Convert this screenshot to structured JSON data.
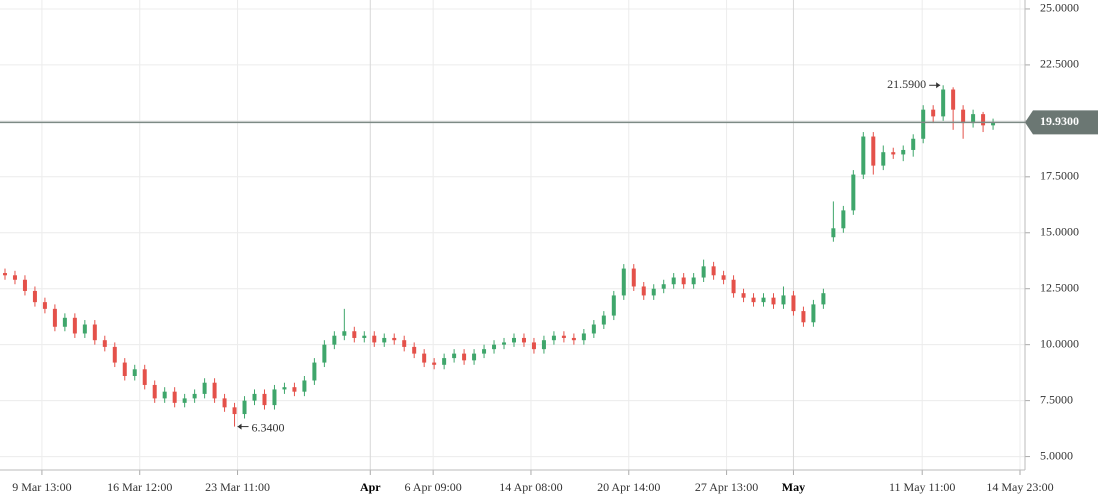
{
  "chart_data": {
    "type": "candlestick",
    "up_color": "#3fa66b",
    "down_color": "#e4514a",
    "open": [
      13.2,
      13.1,
      12.9,
      12.4,
      11.9,
      11.6,
      10.8,
      11.2,
      10.5,
      10.9,
      10.2,
      9.9,
      9.2,
      8.6,
      8.9,
      8.2,
      7.6,
      7.9,
      7.4,
      7.6,
      7.8,
      8.3,
      7.6,
      7.2,
      6.9,
      7.5,
      7.8,
      7.3,
      8.0,
      8.1,
      7.9,
      8.4,
      9.2,
      10.0,
      10.4,
      10.6,
      10.3,
      10.4,
      10.1,
      10.3,
      10.2,
      9.9,
      9.6,
      9.2,
      9.1,
      9.4,
      9.6,
      9.3,
      9.6,
      9.8,
      10.0,
      10.1,
      10.3,
      10.1,
      9.8,
      10.2,
      10.4,
      10.3,
      10.2,
      10.5,
      10.9,
      11.3,
      12.2,
      13.4,
      12.6,
      12.2,
      12.5,
      12.7,
      13.0,
      12.7,
      13.0,
      13.5,
      13.1,
      12.9,
      12.3,
      12.1,
      11.9,
      12.1,
      11.8,
      12.2,
      11.5,
      11.0,
      11.8,
      14.8,
      15.2,
      16.0,
      17.6,
      19.3,
      18.0,
      18.6,
      18.5,
      18.7,
      19.2,
      20.5,
      20.2,
      21.4,
      20.5,
      19.9,
      20.3,
      19.8
    ],
    "high": [
      13.4,
      13.3,
      13.1,
      12.6,
      12.1,
      11.8,
      11.4,
      11.4,
      11.1,
      11.1,
      10.4,
      10.1,
      9.4,
      9.1,
      9.1,
      8.4,
      8.1,
      8.1,
      7.8,
      8.0,
      8.5,
      8.5,
      7.8,
      7.4,
      7.7,
      8.0,
      8.0,
      8.2,
      8.3,
      8.3,
      8.6,
      9.4,
      10.2,
      10.6,
      11.6,
      10.8,
      10.6,
      10.6,
      10.5,
      10.5,
      10.4,
      10.1,
      9.8,
      9.4,
      9.6,
      9.8,
      9.8,
      9.8,
      10.0,
      10.2,
      10.3,
      10.5,
      10.5,
      10.3,
      10.4,
      10.6,
      10.6,
      10.5,
      10.7,
      11.1,
      11.5,
      12.4,
      13.6,
      13.6,
      12.8,
      12.7,
      12.9,
      13.2,
      13.2,
      13.2,
      13.8,
      13.7,
      13.3,
      13.1,
      12.5,
      12.3,
      12.3,
      12.3,
      12.6,
      12.4,
      11.7,
      12.0,
      12.5,
      16.4,
      16.2,
      17.8,
      19.5,
      19.5,
      18.9,
      18.8,
      18.9,
      19.4,
      20.7,
      20.7,
      21.59,
      21.5,
      20.7,
      20.5,
      20.4,
      20.1
    ],
    "low": [
      12.9,
      12.7,
      12.2,
      11.7,
      11.4,
      10.6,
      10.6,
      10.3,
      10.3,
      10.0,
      9.7,
      9.0,
      8.4,
      8.4,
      8.0,
      7.4,
      7.4,
      7.2,
      7.2,
      7.4,
      7.6,
      7.4,
      7.0,
      6.34,
      6.7,
      7.3,
      7.1,
      7.1,
      7.8,
      7.7,
      7.7,
      8.2,
      9.0,
      9.8,
      10.2,
      10.1,
      10.1,
      9.9,
      9.9,
      10.0,
      9.7,
      9.4,
      9.0,
      8.9,
      8.9,
      9.2,
      9.1,
      9.1,
      9.4,
      9.6,
      9.8,
      9.9,
      9.9,
      9.6,
      9.6,
      10.0,
      10.1,
      10.0,
      10.0,
      10.3,
      10.7,
      11.1,
      12.0,
      12.4,
      12.0,
      12.0,
      12.3,
      12.5,
      12.5,
      12.5,
      12.8,
      12.9,
      12.7,
      12.1,
      11.9,
      11.7,
      11.7,
      11.6,
      11.6,
      11.3,
      10.8,
      10.8,
      11.6,
      14.6,
      15.0,
      15.8,
      17.4,
      17.6,
      17.8,
      18.3,
      18.2,
      18.4,
      19.0,
      19.9,
      20.0,
      19.6,
      19.2,
      19.7,
      19.5,
      19.6
    ],
    "close": [
      13.1,
      12.9,
      12.4,
      11.9,
      11.6,
      10.8,
      11.2,
      10.5,
      10.9,
      10.2,
      9.9,
      9.2,
      8.6,
      8.9,
      8.2,
      7.6,
      7.9,
      7.4,
      7.6,
      7.8,
      8.3,
      7.6,
      7.2,
      6.9,
      7.5,
      7.8,
      7.3,
      8.0,
      8.1,
      7.9,
      8.4,
      9.2,
      10.0,
      10.4,
      10.6,
      10.3,
      10.4,
      10.1,
      10.3,
      10.2,
      9.9,
      9.6,
      9.2,
      9.1,
      9.4,
      9.6,
      9.3,
      9.6,
      9.8,
      10.0,
      10.1,
      10.3,
      10.1,
      9.8,
      10.2,
      10.4,
      10.3,
      10.2,
      10.5,
      10.9,
      11.3,
      12.2,
      13.4,
      12.6,
      12.2,
      12.5,
      12.7,
      13.0,
      12.7,
      13.0,
      13.5,
      13.1,
      12.9,
      12.3,
      12.1,
      11.9,
      12.1,
      11.8,
      12.2,
      11.5,
      11.0,
      11.8,
      12.3,
      15.2,
      16.0,
      17.6,
      19.3,
      18.0,
      18.6,
      18.5,
      18.7,
      19.2,
      20.5,
      20.2,
      21.4,
      20.5,
      19.9,
      20.3,
      19.8,
      19.93
    ],
    "ylim": [
      4.4,
      25.4
    ],
    "yticks": [
      {
        "value": 5,
        "label": "5.0000"
      },
      {
        "value": 7.5,
        "label": "7.5000"
      },
      {
        "value": 10,
        "label": "10.0000"
      },
      {
        "value": 12.5,
        "label": "12.5000"
      },
      {
        "value": 15,
        "label": "15.0000"
      },
      {
        "value": 17.5,
        "label": "17.5000"
      },
      {
        "value": 20,
        "label": "20.0000"
      },
      {
        "value": 22.5,
        "label": "22.5000"
      },
      {
        "value": 25,
        "label": "25.0000"
      }
    ],
    "xlim": [
      -0.5,
      102.2
    ],
    "xticks": [
      {
        "value": 3.7,
        "label": "9 Mar 13:00"
      },
      {
        "value": 13.5,
        "label": "16 Mar 12:00"
      },
      {
        "value": 23.3,
        "label": "23 Mar 11:00"
      },
      {
        "value": 36.6,
        "label": "Apr"
      },
      {
        "value": 42.9,
        "label": "6 Apr 09:00"
      },
      {
        "value": 52.7,
        "label": "14 Apr 08:00"
      },
      {
        "value": 62.5,
        "label": "20 Apr 14:00"
      },
      {
        "value": 72.3,
        "label": "27 Apr 13:00"
      },
      {
        "value": 79,
        "label": "May"
      },
      {
        "value": 91.9,
        "label": "11 May 11:00"
      },
      {
        "value": 101.7,
        "label": "14 May 23:00"
      }
    ],
    "current_price": {
      "value": 19.93,
      "label": "19.9300"
    },
    "annotations": [
      {
        "value": 21.59,
        "label": "21.5900"
      },
      {
        "value": 6.34,
        "label": "6.3400"
      }
    ],
    "grid": true
  }
}
